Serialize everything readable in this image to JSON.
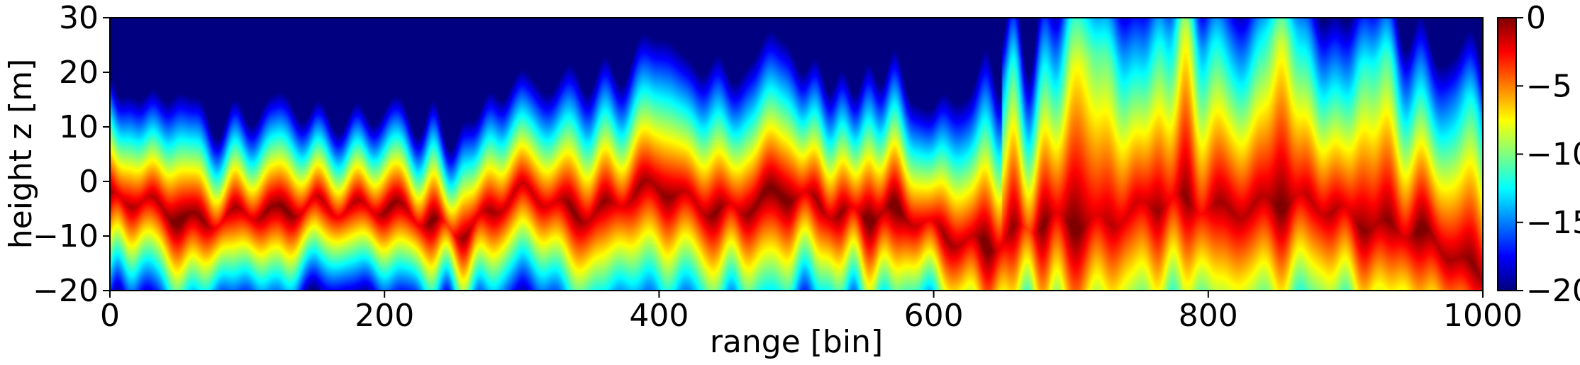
{
  "chart_data": {
    "type": "heatmap",
    "xlabel": "range [bin]",
    "ylabel": "height z [m]",
    "xlim": [
      0,
      1000
    ],
    "ylim": [
      -20,
      30
    ],
    "x_ticks": [
      0,
      200,
      400,
      600,
      800,
      1000
    ],
    "y_ticks": [
      -20,
      -10,
      0,
      10,
      20,
      30
    ],
    "colorbar": {
      "range": [
        -20,
        0
      ],
      "ticks": [
        0,
        -5,
        -10,
        -15,
        -20
      ],
      "colormap": "jet"
    },
    "ridge_center_z": [
      [
        0,
        -4
      ],
      [
        60,
        -6
      ],
      [
        120,
        -7
      ],
      [
        150,
        -3
      ],
      [
        200,
        -6
      ],
      [
        260,
        -8
      ],
      [
        300,
        -3
      ],
      [
        350,
        -5
      ],
      [
        400,
        -2
      ],
      [
        460,
        -5
      ],
      [
        500,
        -3
      ],
      [
        560,
        -6
      ],
      [
        600,
        -9
      ],
      [
        650,
        -11
      ],
      [
        700,
        -7
      ],
      [
        800,
        -4
      ],
      [
        900,
        -5
      ],
      [
        1000,
        -16
      ]
    ],
    "ridge_width_z": [
      [
        0,
        7
      ],
      [
        200,
        6
      ],
      [
        400,
        9
      ],
      [
        600,
        8
      ],
      [
        700,
        14
      ],
      [
        800,
        13
      ],
      [
        1000,
        10
      ]
    ]
  }
}
